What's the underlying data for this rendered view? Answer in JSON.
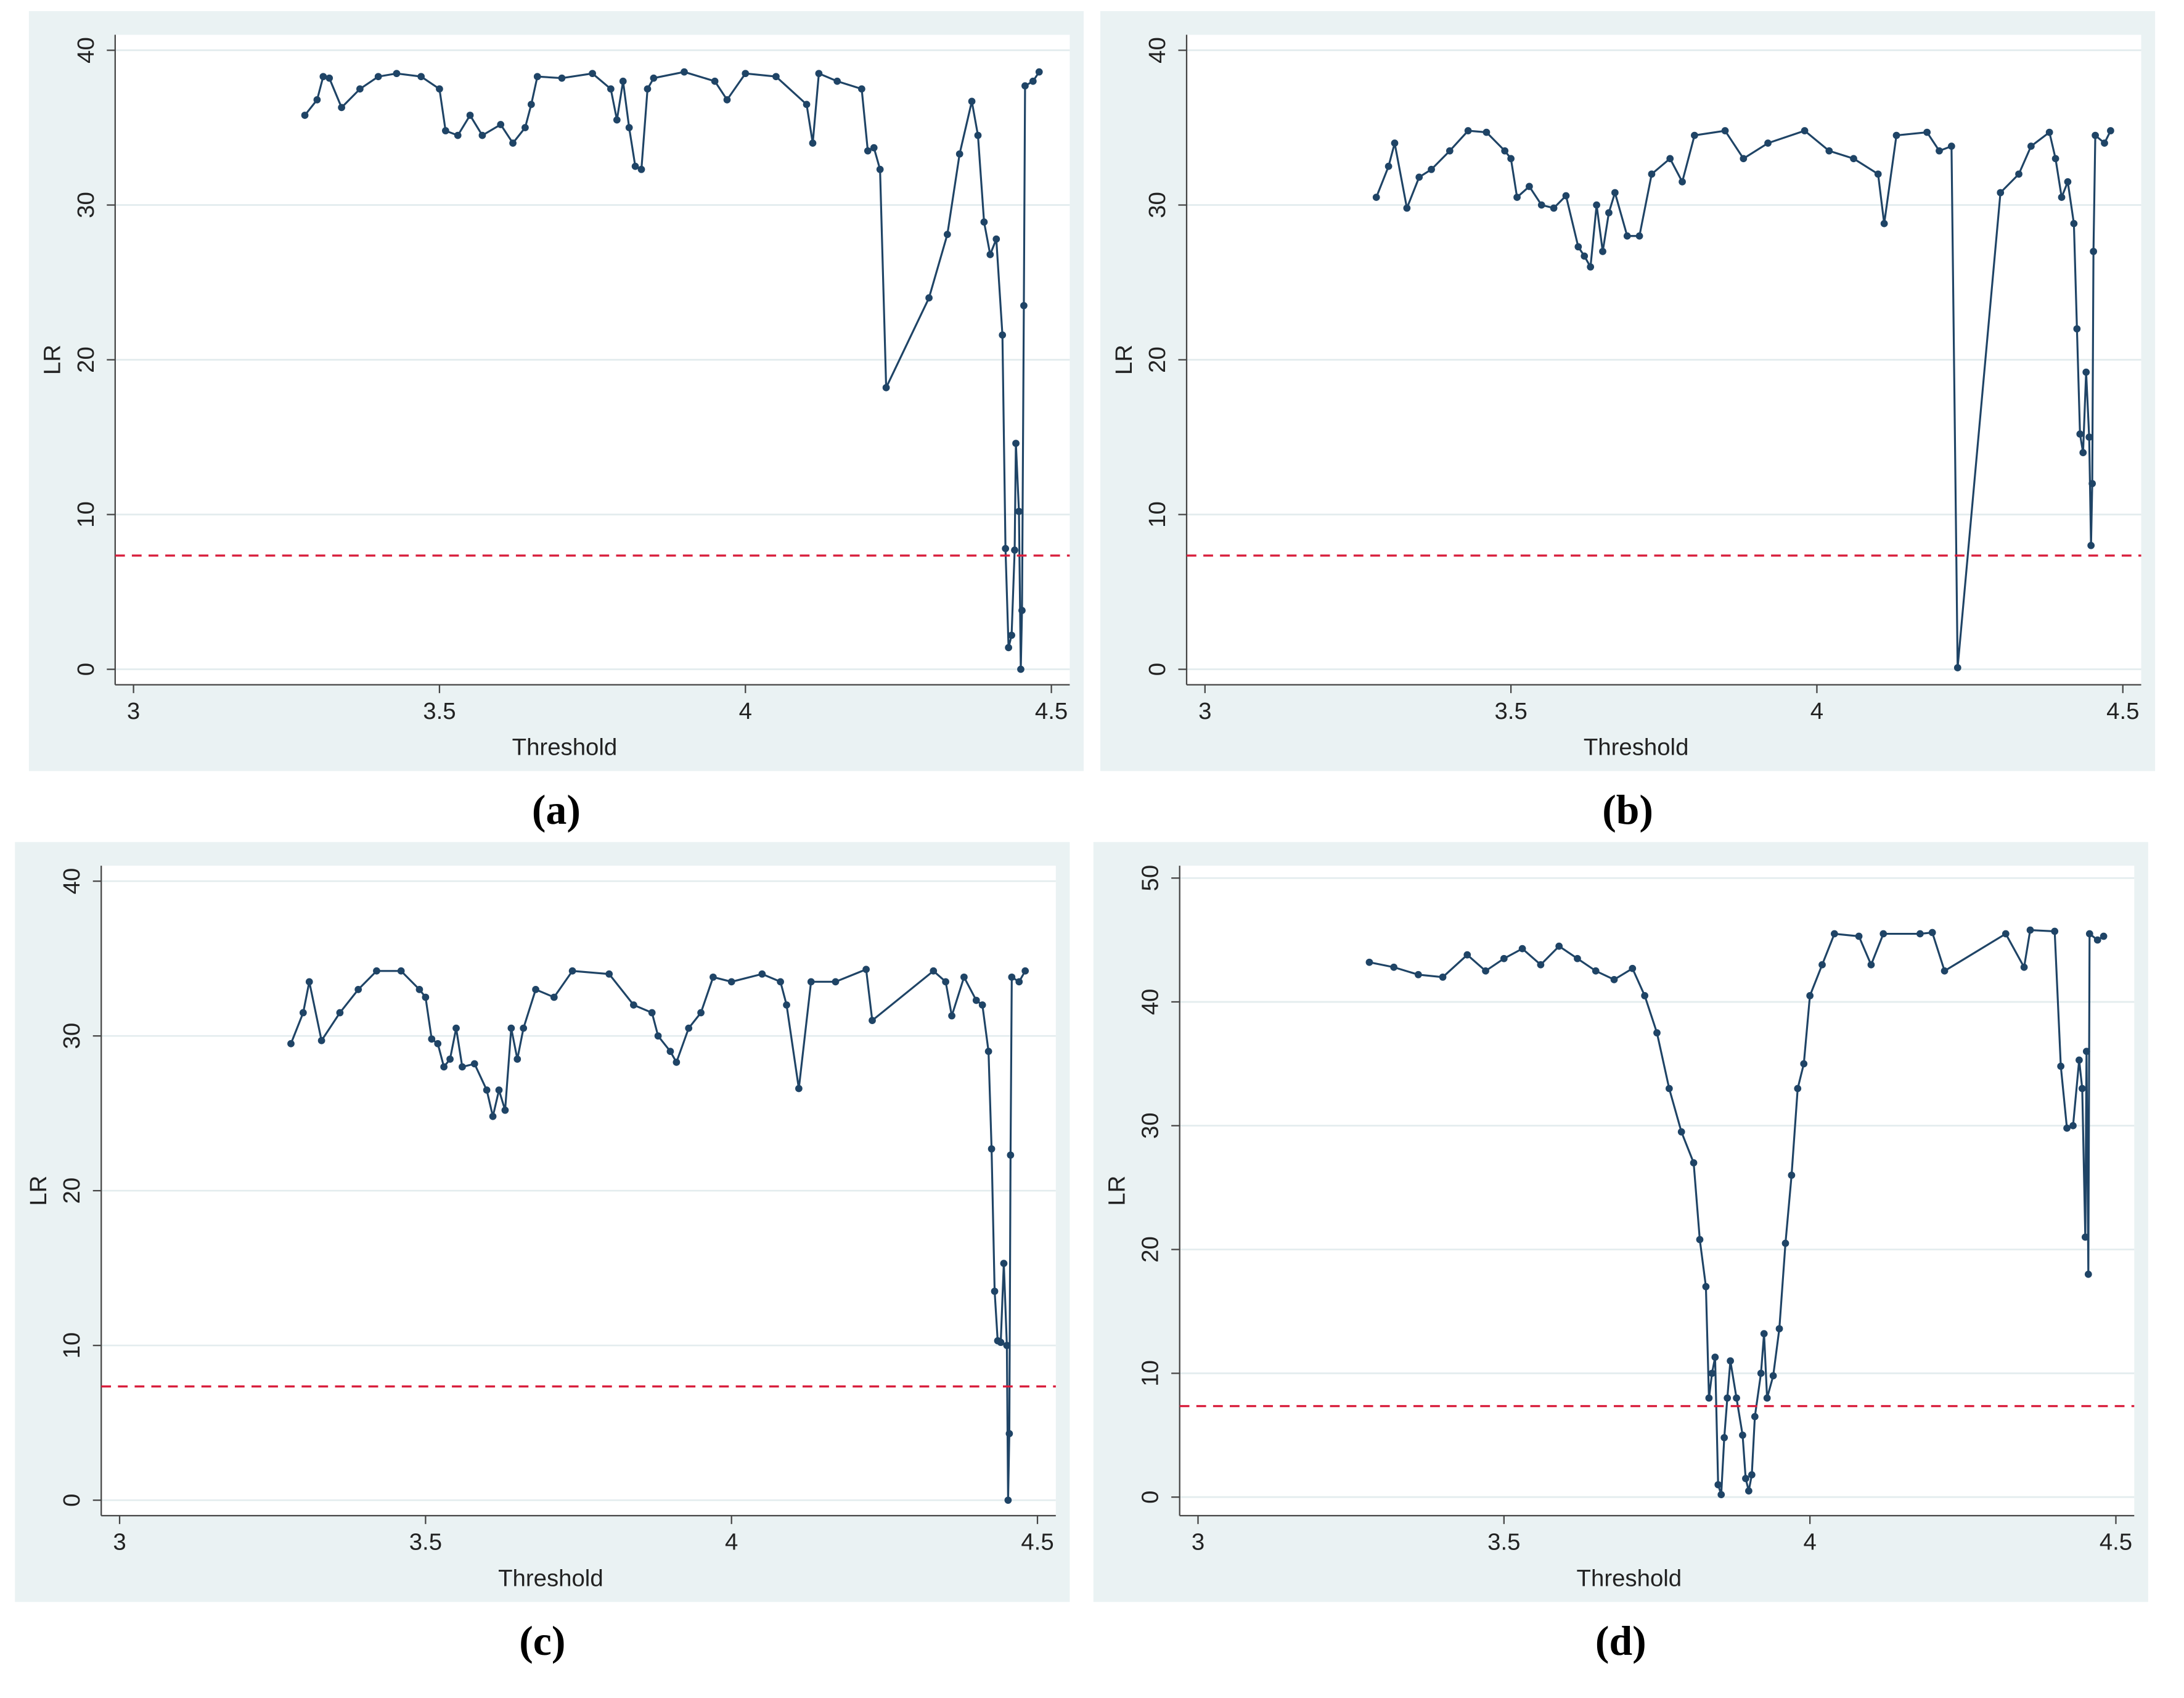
{
  "chart_data": [
    {
      "type": "line",
      "caption": "(a)",
      "xlabel": "Threshold",
      "ylabel": "LR",
      "color": "#1f4466",
      "xlim": [
        2.97,
        4.53
      ],
      "ylim": [
        -1,
        41
      ],
      "xticks": [
        3,
        3.5,
        4,
        4.5
      ],
      "yticks": [
        0,
        10,
        20,
        30,
        40
      ],
      "grid": true,
      "hline": 7.35,
      "hline_color": "#d81e3c",
      "x": [
        3.28,
        3.3,
        3.31,
        3.32,
        3.34,
        3.37,
        3.4,
        3.43,
        3.47,
        3.5,
        3.51,
        3.53,
        3.55,
        3.57,
        3.6,
        3.62,
        3.64,
        3.65,
        3.66,
        3.7,
        3.75,
        3.78,
        3.79,
        3.8,
        3.81,
        3.82,
        3.83,
        3.84,
        3.85,
        3.9,
        3.95,
        3.97,
        4.0,
        4.05,
        4.1,
        4.11,
        4.12,
        4.15,
        4.19,
        4.2,
        4.21,
        4.22,
        4.23,
        4.3,
        4.33,
        4.35,
        4.37,
        4.38,
        4.39,
        4.4,
        4.41,
        4.42,
        4.425,
        4.43,
        4.435,
        4.44,
        4.442,
        4.447,
        4.45,
        4.452,
        4.455,
        4.457,
        4.47,
        4.48
      ],
      "values": [
        35.8,
        36.8,
        38.3,
        38.2,
        36.3,
        37.5,
        38.3,
        38.5,
        38.3,
        37.5,
        34.8,
        34.5,
        35.8,
        34.5,
        35.2,
        34.0,
        35.0,
        36.5,
        38.3,
        38.2,
        38.5,
        37.5,
        35.5,
        38.0,
        35.0,
        32.5,
        32.3,
        37.5,
        38.2,
        38.6,
        38.0,
        36.8,
        38.5,
        38.3,
        36.5,
        34.0,
        38.5,
        38.0,
        37.5,
        33.5,
        33.7,
        32.3,
        18.2,
        24.0,
        28.1,
        33.3,
        36.7,
        34.5,
        28.9,
        26.8,
        27.8,
        21.6,
        7.8,
        1.4,
        2.2,
        7.7,
        14.6,
        10.2,
        0.0,
        3.8,
        23.5,
        37.7,
        38.0,
        38.6
      ]
    },
    {
      "type": "line",
      "caption": "(b)",
      "xlabel": "Threshold",
      "ylabel": "LR",
      "color": "#1f4466",
      "xlim": [
        2.97,
        4.53
      ],
      "ylim": [
        -1,
        41
      ],
      "xticks": [
        3,
        3.5,
        4,
        4.5
      ],
      "yticks": [
        0,
        10,
        20,
        30,
        40
      ],
      "grid": true,
      "hline": 7.35,
      "hline_color": "#d81e3c",
      "x": [
        3.28,
        3.3,
        3.31,
        3.33,
        3.35,
        3.37,
        3.4,
        3.43,
        3.46,
        3.49,
        3.5,
        3.51,
        3.53,
        3.55,
        3.57,
        3.59,
        3.61,
        3.62,
        3.63,
        3.64,
        3.65,
        3.66,
        3.67,
        3.69,
        3.71,
        3.73,
        3.76,
        3.78,
        3.8,
        3.85,
        3.88,
        3.92,
        3.98,
        4.02,
        4.06,
        4.1,
        4.11,
        4.13,
        4.18,
        4.2,
        4.22,
        4.23,
        4.3,
        4.33,
        4.35,
        4.38,
        4.39,
        4.4,
        4.41,
        4.42,
        4.425,
        4.43,
        4.435,
        4.44,
        4.445,
        4.448,
        4.45,
        4.452,
        4.455,
        4.47,
        4.48
      ],
      "values": [
        30.5,
        32.5,
        34.0,
        29.8,
        31.8,
        32.3,
        33.5,
        34.8,
        34.7,
        33.5,
        33.0,
        30.5,
        31.2,
        30.0,
        29.8,
        30.6,
        27.3,
        26.7,
        26.0,
        30.0,
        27.0,
        29.5,
        30.8,
        28.0,
        28.0,
        32.0,
        33.0,
        31.5,
        34.5,
        34.8,
        33.0,
        34.0,
        34.8,
        33.5,
        33.0,
        32.0,
        28.8,
        34.5,
        34.7,
        33.5,
        33.8,
        0.1,
        30.8,
        32.0,
        33.8,
        34.7,
        33.0,
        30.5,
        31.5,
        28.8,
        22.0,
        15.2,
        14.0,
        19.2,
        15.0,
        8.0,
        12.0,
        27.0,
        34.5,
        34.0,
        34.8
      ]
    },
    {
      "type": "line",
      "caption": "(c)",
      "xlabel": "Threshold",
      "ylabel": "LR",
      "color": "#1f4466",
      "xlim": [
        2.97,
        4.53
      ],
      "ylim": [
        -1,
        41
      ],
      "xticks": [
        3,
        3.5,
        4,
        4.5
      ],
      "yticks": [
        0,
        10,
        20,
        30,
        40
      ],
      "grid": true,
      "hline": 7.35,
      "hline_color": "#d81e3c",
      "x": [
        3.28,
        3.3,
        3.31,
        3.33,
        3.36,
        3.39,
        3.42,
        3.46,
        3.49,
        3.5,
        3.51,
        3.52,
        3.53,
        3.54,
        3.55,
        3.56,
        3.58,
        3.6,
        3.61,
        3.62,
        3.63,
        3.64,
        3.65,
        3.66,
        3.68,
        3.71,
        3.74,
        3.8,
        3.84,
        3.87,
        3.88,
        3.9,
        3.91,
        3.93,
        3.95,
        3.97,
        4.0,
        4.05,
        4.08,
        4.09,
        4.11,
        4.13,
        4.17,
        4.22,
        4.23,
        4.33,
        4.35,
        4.36,
        4.38,
        4.4,
        4.41,
        4.42,
        4.425,
        4.43,
        4.435,
        4.44,
        4.445,
        4.45,
        4.452,
        4.454,
        4.456,
        4.458,
        4.47,
        4.48
      ],
      "values": [
        29.5,
        31.5,
        33.5,
        29.7,
        31.5,
        33.0,
        34.2,
        34.2,
        33.0,
        32.5,
        29.8,
        29.5,
        28.0,
        28.5,
        30.5,
        28.0,
        28.2,
        26.5,
        24.8,
        26.5,
        25.2,
        30.5,
        28.5,
        30.5,
        33.0,
        32.5,
        34.2,
        34.0,
        32.0,
        31.5,
        30.0,
        29.0,
        28.3,
        30.5,
        31.5,
        33.8,
        33.5,
        34.0,
        33.5,
        32.0,
        26.6,
        33.5,
        33.5,
        34.3,
        31.0,
        34.2,
        33.5,
        31.3,
        33.8,
        32.3,
        32.0,
        29.0,
        22.7,
        13.5,
        10.3,
        10.2,
        15.3,
        10.0,
        0.0,
        4.3,
        22.3,
        33.8,
        33.5,
        34.2
      ]
    },
    {
      "type": "line",
      "caption": "(d)",
      "xlabel": "Threshold",
      "ylabel": "LR",
      "color": "#1f4466",
      "xlim": [
        2.97,
        4.53
      ],
      "ylim": [
        -1.5,
        51
      ],
      "xticks": [
        3,
        3.5,
        4,
        4.5
      ],
      "yticks": [
        0,
        10,
        20,
        30,
        40,
        50
      ],
      "grid": true,
      "hline": 7.35,
      "hline_color": "#d81e3c",
      "x": [
        3.28,
        3.32,
        3.36,
        3.4,
        3.44,
        3.47,
        3.5,
        3.53,
        3.56,
        3.59,
        3.62,
        3.65,
        3.68,
        3.71,
        3.73,
        3.75,
        3.77,
        3.79,
        3.81,
        3.82,
        3.83,
        3.835,
        3.84,
        3.845,
        3.85,
        3.855,
        3.86,
        3.865,
        3.87,
        3.88,
        3.89,
        3.895,
        3.9,
        3.905,
        3.91,
        3.92,
        3.925,
        3.93,
        3.94,
        3.95,
        3.96,
        3.97,
        3.98,
        3.99,
        4.0,
        4.02,
        4.04,
        4.08,
        4.1,
        4.12,
        4.18,
        4.2,
        4.22,
        4.32,
        4.35,
        4.36,
        4.4,
        4.41,
        4.42,
        4.43,
        4.44,
        4.445,
        4.45,
        4.452,
        4.455,
        4.457,
        4.47,
        4.48
      ],
      "values": [
        43.2,
        42.8,
        42.2,
        42.0,
        43.8,
        42.5,
        43.5,
        44.3,
        43.0,
        44.5,
        43.5,
        42.5,
        41.8,
        42.7,
        40.5,
        37.5,
        33.0,
        29.5,
        27.0,
        20.8,
        17.0,
        8.0,
        10.0,
        11.3,
        1.0,
        0.2,
        4.8,
        8.0,
        11.0,
        8.0,
        5.0,
        1.5,
        0.5,
        1.8,
        6.5,
        10.0,
        13.2,
        8.0,
        9.8,
        13.6,
        20.5,
        26.0,
        33.0,
        35.0,
        40.5,
        43.0,
        45.5,
        45.3,
        43.0,
        45.5,
        45.5,
        45.6,
        42.5,
        45.5,
        42.8,
        45.8,
        45.7,
        34.8,
        29.8,
        30.0,
        35.3,
        33.0,
        21.0,
        36.0,
        18.0,
        45.5,
        45.0,
        45.3
      ]
    }
  ]
}
